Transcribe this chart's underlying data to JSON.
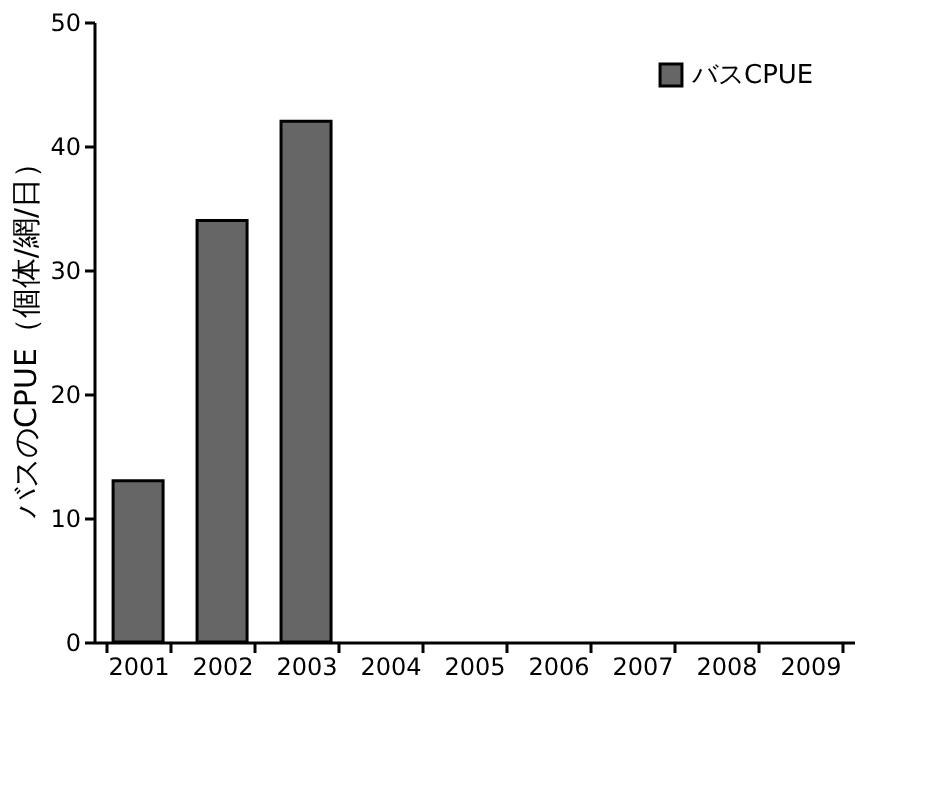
{
  "chart_data": {
    "type": "bar",
    "ylabel": "バスのCPUE（個体/網/日）",
    "categories": [
      "2001",
      "2002",
      "2003",
      "2004",
      "2005",
      "2006",
      "2007",
      "2008",
      "2009"
    ],
    "series": [
      {
        "name": "バスCPUE",
        "color": "#666666",
        "values": [
          13,
          34,
          42,
          null,
          null,
          null,
          null,
          null,
          null
        ]
      }
    ],
    "ylim": [
      0,
      50
    ],
    "yticks": [
      0,
      10,
      20,
      30,
      40,
      50
    ],
    "grid": false,
    "legend": "top right"
  }
}
